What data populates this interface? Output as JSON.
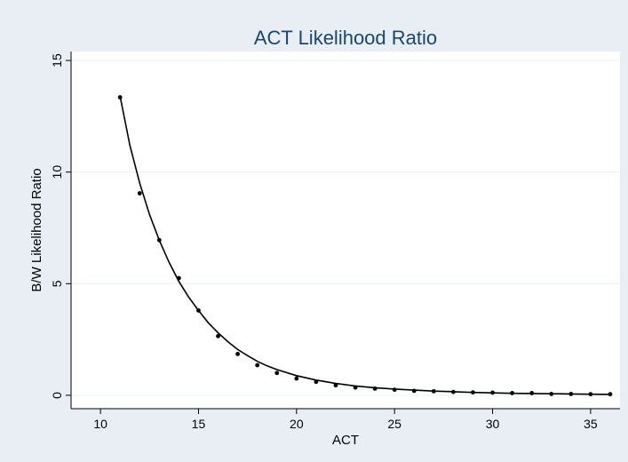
{
  "colors": {
    "background": "#e8eef3",
    "plot_area": "#ffffff",
    "title": "#1a476f",
    "grid": "#eaf1f5",
    "marker": "#000000",
    "fit_line": "#000000"
  },
  "chart_data": {
    "type": "scatter",
    "title": "ACT Likelihood Ratio",
    "xlabel": "ACT",
    "ylabel": "B/W Likelihood Ratio",
    "xlim": [
      8.5,
      36.5
    ],
    "ylim": [
      -0.6,
      15.4
    ],
    "xticks": [
      10,
      15,
      20,
      25,
      30,
      35
    ],
    "yticks": [
      0,
      5,
      10,
      15
    ],
    "grid": "horizontal",
    "legend": "none",
    "series": [
      {
        "type": "scatter",
        "x": [
          11,
          12,
          13,
          14,
          15,
          16,
          17,
          18,
          19,
          20,
          21,
          22,
          23,
          24,
          25,
          26,
          27,
          28,
          29,
          30,
          31,
          32,
          33,
          34,
          35,
          36
        ],
        "y": [
          13.35,
          9.05,
          6.95,
          5.25,
          3.8,
          2.65,
          1.85,
          1.35,
          1.0,
          0.75,
          0.6,
          0.45,
          0.35,
          0.3,
          0.25,
          0.2,
          0.18,
          0.15,
          0.13,
          0.12,
          0.1,
          0.1,
          0.06,
          0.06,
          0.05,
          0.05
        ]
      },
      {
        "type": "line",
        "x": [
          11,
          11.5,
          12,
          12.5,
          13,
          13.5,
          14,
          14.5,
          15,
          15.5,
          16,
          16.5,
          17,
          17.5,
          18,
          18.5,
          19,
          20,
          21,
          22,
          23,
          24,
          25,
          26,
          27,
          28,
          29,
          30,
          31,
          32,
          33,
          34,
          35,
          36
        ],
        "y": [
          13.4,
          11.2,
          9.5,
          8.1,
          6.95,
          5.95,
          5.1,
          4.4,
          3.8,
          3.25,
          2.8,
          2.4,
          2.05,
          1.78,
          1.52,
          1.32,
          1.15,
          0.88,
          0.68,
          0.53,
          0.42,
          0.34,
          0.28,
          0.23,
          0.19,
          0.16,
          0.13,
          0.11,
          0.09,
          0.08,
          0.07,
          0.06,
          0.05,
          0.04
        ]
      }
    ]
  }
}
